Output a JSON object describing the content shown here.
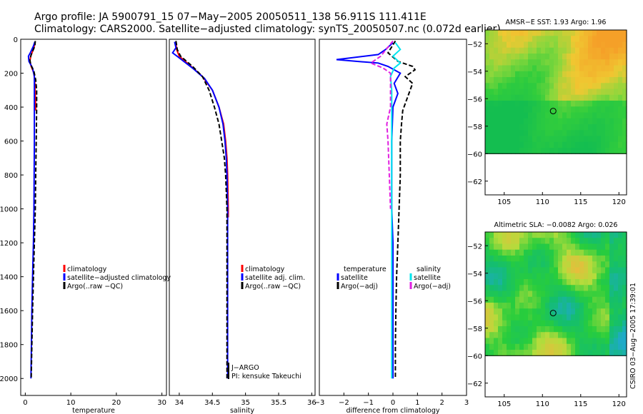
{
  "header": {
    "line1": "Argo profile: JA 5900791_15 07−May−2005 20050511_138 56.911S 111.411E",
    "line2": "Climatology: CARS2000. Satellite−adjusted climatology: synTS_20050507.nc (0.072d earlier)"
  },
  "colors": {
    "climatology": "#ff0000",
    "satellite": "#0000ff",
    "argo": "#000000",
    "sat_sal": "#00e5ee",
    "argo_sal": "#e020e0"
  },
  "side_stamp": "CSIRO 03−Aug−2005 17:39:01",
  "chart_data": [
    {
      "type": "line",
      "panel": "temperature",
      "xlabel": "temperature",
      "ylabel": "",
      "xlim": [
        -1,
        31
      ],
      "ylim": [
        2100,
        0
      ],
      "xticks": [
        0,
        10,
        20,
        30
      ],
      "yticks": [
        0,
        200,
        400,
        600,
        800,
        1000,
        1200,
        1400,
        1600,
        1800,
        2000
      ],
      "legend": {
        "items": [
          {
            "label": "climatology",
            "key": "climatology"
          },
          {
            "label": "satellite−adjusted climatology",
            "key": "satellite"
          },
          {
            "label": "Argo(..raw −QC)",
            "key": "argo"
          }
        ]
      },
      "series": [
        {
          "key": "climatology",
          "style": "solid",
          "points": [
            [
              2.1,
              20
            ],
            [
              1.9,
              50
            ],
            [
              1.2,
              100
            ],
            [
              1.0,
              130
            ],
            [
              1.3,
              160
            ],
            [
              1.9,
              200
            ],
            [
              2.1,
              260
            ],
            [
              2.2,
              330
            ],
            [
              2.3,
              420
            ]
          ]
        },
        {
          "key": "satellite",
          "style": "solid",
          "points": [
            [
              2.1,
              15
            ],
            [
              1.8,
              40
            ],
            [
              1.1,
              80
            ],
            [
              0.7,
              100
            ],
            [
              0.8,
              130
            ],
            [
              1.6,
              170
            ],
            [
              2.0,
              220
            ],
            [
              2.0,
              400
            ],
            [
              2.0,
              600
            ],
            [
              1.95,
              800
            ],
            [
              1.9,
              1000
            ],
            [
              1.8,
              1200
            ],
            [
              1.6,
              1400
            ],
            [
              1.45,
              1600
            ],
            [
              1.35,
              1800
            ],
            [
              1.25,
              2000
            ]
          ]
        },
        {
          "key": "argo",
          "style": "dashed",
          "points": [
            [
              2.2,
              10
            ],
            [
              2.1,
              40
            ],
            [
              1.3,
              90
            ],
            [
              1.0,
              120
            ],
            [
              1.2,
              150
            ],
            [
              1.9,
              190
            ],
            [
              2.3,
              240
            ],
            [
              2.5,
              300
            ],
            [
              2.5,
              400
            ],
            [
              2.4,
              600
            ],
            [
              2.3,
              800
            ],
            [
              2.2,
              1000
            ],
            [
              2.0,
              1200
            ],
            [
              1.8,
              1400
            ],
            [
              1.6,
              1600
            ],
            [
              1.45,
              1800
            ],
            [
              1.3,
              2000
            ]
          ]
        }
      ]
    },
    {
      "type": "line",
      "panel": "salinity",
      "xlabel": "salinity",
      "xlim": [
        33.85,
        36.05
      ],
      "ylim": [
        2100,
        0
      ],
      "xticks": [
        34,
        34.5,
        35,
        35.5,
        36
      ],
      "legend": {
        "items": [
          {
            "label": "climatology",
            "key": "climatology"
          },
          {
            "label": "satellite adj. clim.",
            "key": "satellite"
          },
          {
            "label": "Argo(..raw −QC)",
            "key": "argo"
          }
        ]
      },
      "notes": [
        "J−ARGO",
        "PI: kensuke Takeuchi"
      ],
      "series": [
        {
          "key": "climatology",
          "style": "solid",
          "points": [
            [
              33.95,
              20
            ],
            [
              33.96,
              60
            ],
            [
              34.0,
              100
            ],
            [
              34.15,
              150
            ],
            [
              34.35,
              220
            ],
            [
              34.5,
              300
            ],
            [
              34.6,
              400
            ],
            [
              34.67,
              500
            ],
            [
              34.7,
              600
            ],
            [
              34.72,
              700
            ],
            [
              34.73,
              800
            ],
            [
              34.74,
              1000
            ],
            [
              34.74,
              1050
            ]
          ]
        },
        {
          "key": "satellite",
          "style": "solid",
          "points": [
            [
              33.93,
              15
            ],
            [
              33.95,
              50
            ],
            [
              33.9,
              80
            ],
            [
              34.0,
              110
            ],
            [
              34.2,
              170
            ],
            [
              34.38,
              230
            ],
            [
              34.5,
              300
            ],
            [
              34.6,
              400
            ],
            [
              34.66,
              500
            ],
            [
              34.69,
              600
            ],
            [
              34.71,
              700
            ],
            [
              34.72,
              800
            ],
            [
              34.73,
              1000
            ],
            [
              34.73,
              1200
            ],
            [
              34.73,
              1400
            ],
            [
              34.73,
              1600
            ],
            [
              34.73,
              1800
            ],
            [
              34.73,
              2000
            ]
          ]
        },
        {
          "key": "argo",
          "style": "dashed",
          "points": [
            [
              33.95,
              10
            ],
            [
              33.97,
              60
            ],
            [
              34.02,
              100
            ],
            [
              34.2,
              160
            ],
            [
              34.35,
              220
            ],
            [
              34.45,
              300
            ],
            [
              34.53,
              400
            ],
            [
              34.6,
              500
            ],
            [
              34.64,
              600
            ],
            [
              34.68,
              700
            ],
            [
              34.7,
              800
            ],
            [
              34.72,
              1000
            ],
            [
              34.72,
              1200
            ],
            [
              34.72,
              1400
            ],
            [
              34.72,
              1600
            ],
            [
              34.72,
              1800
            ],
            [
              34.72,
              2000
            ]
          ]
        }
      ]
    },
    {
      "type": "line",
      "panel": "difference",
      "xlabel": "difference from climatology",
      "xlim": [
        -3,
        3
      ],
      "ylim": [
        2100,
        0
      ],
      "xticks": [
        -3,
        -2,
        -1,
        0,
        1,
        2,
        3
      ],
      "legend_temperature": {
        "title": "temperature",
        "items": [
          {
            "label": "satellite",
            "key": "satellite"
          },
          {
            "label": "Argo(−adj)",
            "key": "argo"
          }
        ]
      },
      "legend_salinity": {
        "title": "salinity",
        "items": [
          {
            "label": "satellite",
            "key": "sat_sal"
          },
          {
            "label": "Argo(−adj)",
            "key": "argo_sal"
          }
        ]
      },
      "series": [
        {
          "key": "satellite",
          "style": "solid",
          "points": [
            [
              0.0,
              20
            ],
            [
              -0.3,
              60
            ],
            [
              -0.6,
              90
            ],
            [
              -2.3,
              120
            ],
            [
              -1.5,
              130
            ],
            [
              -0.6,
              140
            ],
            [
              -0.2,
              160
            ],
            [
              0.3,
              200
            ],
            [
              0.05,
              260
            ],
            [
              0.2,
              320
            ],
            [
              0.0,
              400
            ],
            [
              -0.05,
              600
            ],
            [
              -0.05,
              800
            ],
            [
              -0.05,
              1000
            ],
            [
              0.0,
              1200
            ],
            [
              0.0,
              1400
            ],
            [
              0.0,
              1600
            ],
            [
              0.0,
              1800
            ],
            [
              0.0,
              2000
            ]
          ]
        },
        {
          "key": "argo",
          "style": "dashed",
          "points": [
            [
              0.1,
              10
            ],
            [
              -0.2,
              80
            ],
            [
              0.2,
              130
            ],
            [
              0.8,
              160
            ],
            [
              0.9,
              180
            ],
            [
              0.5,
              220
            ],
            [
              0.8,
              260
            ],
            [
              0.6,
              340
            ],
            [
              0.4,
              420
            ],
            [
              0.35,
              500
            ],
            [
              0.3,
              600
            ],
            [
              0.3,
              800
            ],
            [
              0.25,
              1000
            ],
            [
              0.2,
              1200
            ],
            [
              0.15,
              1400
            ],
            [
              0.12,
              1600
            ],
            [
              0.1,
              1800
            ],
            [
              0.1,
              2000
            ]
          ]
        },
        {
          "key": "sat_sal",
          "style": "solid",
          "points": [
            [
              0.1,
              20
            ],
            [
              0.3,
              60
            ],
            [
              0.0,
              100
            ],
            [
              0.3,
              140
            ],
            [
              0.05,
              170
            ],
            [
              -0.1,
              220
            ],
            [
              -0.05,
              300
            ],
            [
              -0.05,
              400
            ],
            [
              -0.05,
              600
            ],
            [
              -0.05,
              800
            ],
            [
              -0.05,
              1000
            ],
            [
              -0.05,
              1200
            ],
            [
              -0.05,
              1400
            ],
            [
              -0.05,
              1600
            ],
            [
              -0.05,
              1800
            ],
            [
              -0.05,
              2000
            ]
          ]
        },
        {
          "key": "argo_sal",
          "style": "dashed",
          "points": [
            [
              0.0,
              10
            ],
            [
              -0.5,
              100
            ],
            [
              -0.9,
              140
            ],
            [
              -0.4,
              170
            ],
            [
              -0.1,
              200
            ],
            [
              -0.1,
              400
            ],
            [
              -0.25,
              500
            ],
            [
              -0.2,
              600
            ],
            [
              -0.15,
              800
            ],
            [
              -0.1,
              1000
            ]
          ]
        }
      ]
    },
    {
      "type": "heatmap",
      "panel": "sst_map",
      "title": "AMSR−E SST: 1.93 Argo: 1.96",
      "xlim": [
        102.5,
        121
      ],
      "ylim": [
        -63,
        -51
      ],
      "xticks": [
        105,
        110,
        115,
        120
      ],
      "yticks": [
        -52,
        -54,
        -56,
        -58,
        -60,
        -62
      ],
      "data_bottom": -60,
      "marker": {
        "lon": 111.4,
        "lat": -56.9
      }
    },
    {
      "type": "heatmap",
      "panel": "sla_map",
      "title": "Altimetric SLA: −0.0082 Argo: 0.026",
      "xlim": [
        102.5,
        121
      ],
      "ylim": [
        -63,
        -51
      ],
      "xticks": [
        105,
        110,
        115,
        120
      ],
      "yticks": [
        -52,
        -54,
        -56,
        -58,
        -60,
        -62
      ],
      "data_bottom": -60,
      "marker": {
        "lon": 111.4,
        "lat": -56.9
      }
    }
  ]
}
